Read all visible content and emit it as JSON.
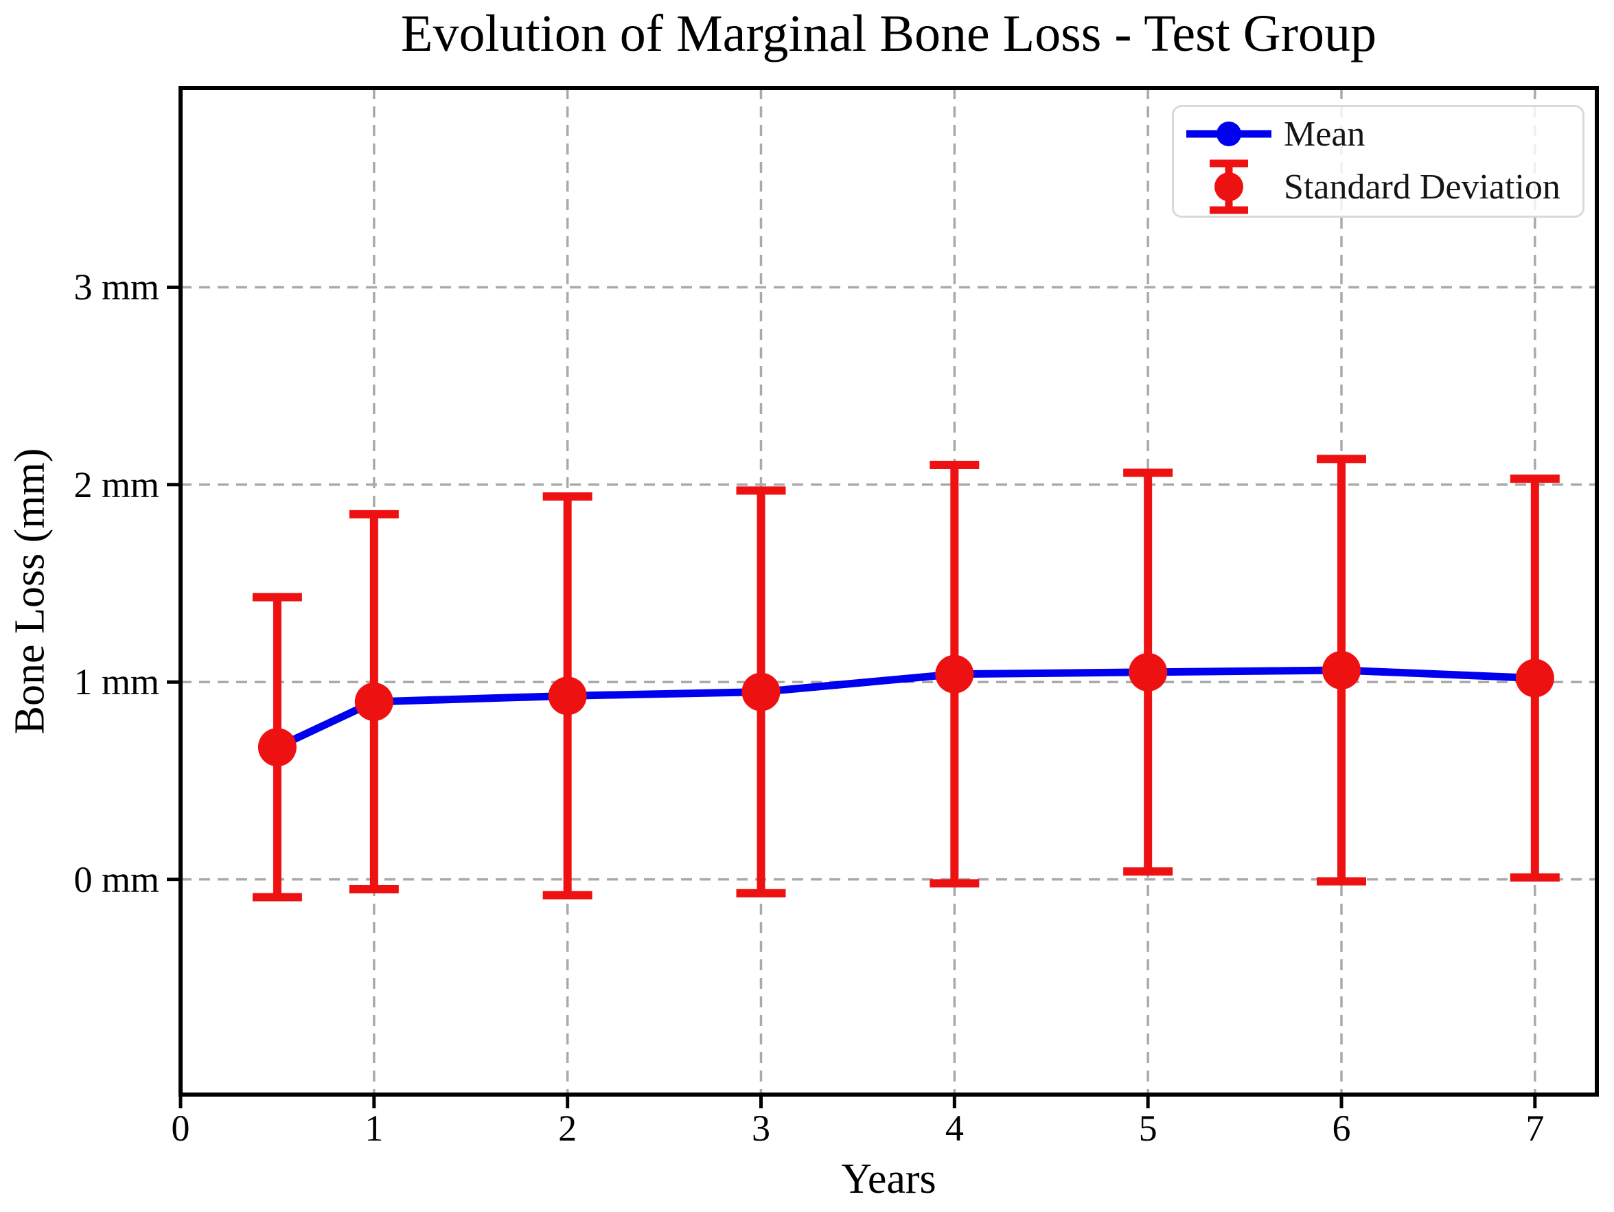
{
  "chart_data": {
    "type": "line",
    "title": "Evolution of Marginal Bone Loss - Test Group",
    "xlabel": "Years",
    "ylabel": "Bone Loss (mm)",
    "x": [
      0.5,
      1,
      2,
      3,
      4,
      5,
      6,
      7
    ],
    "series": [
      {
        "name": "Mean",
        "role": "line-with-markers",
        "values": [
          0.67,
          0.9,
          0.93,
          0.95,
          1.04,
          1.05,
          1.06,
          1.02
        ]
      },
      {
        "name": "Standard Deviation",
        "role": "errorbar",
        "values": [
          0.76,
          0.95,
          1.01,
          1.02,
          1.06,
          1.01,
          1.07,
          1.01
        ]
      }
    ],
    "xticks": {
      "values": [
        0,
        1,
        2,
        3,
        4,
        5,
        6,
        7
      ],
      "labels": [
        "0",
        "1",
        "2",
        "3",
        "4",
        "5",
        "6",
        "7"
      ]
    },
    "yticks": {
      "values": [
        0,
        1,
        2,
        3
      ],
      "labels": [
        "0 mm",
        "1 mm",
        "2 mm",
        "3 mm"
      ]
    },
    "xlim": [
      0,
      7.32
    ],
    "ylim": [
      -1.09,
      4.01
    ],
    "grid": true,
    "grid_style": "dashed",
    "legend": {
      "position": "upper right",
      "entries": [
        "Mean",
        "Standard Deviation"
      ]
    },
    "colors": {
      "mean": "#0000ee",
      "sd": "#ee1111",
      "grid": "#a9a9a9",
      "spine": "#000000",
      "text": "#000000"
    }
  }
}
